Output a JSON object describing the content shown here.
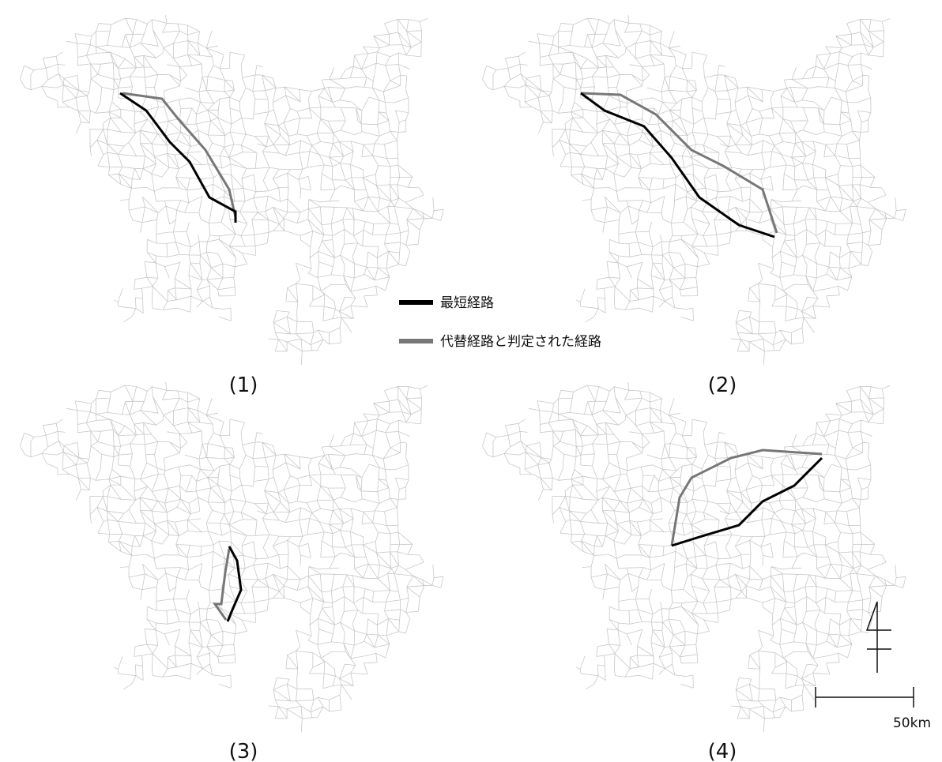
{
  "legend": [
    {
      "label": "最短経路"
    },
    {
      "label": "代替経路と判定された経路"
    }
  ],
  "panels": [
    {
      "label": "(1)"
    },
    {
      "label": "(2)"
    },
    {
      "label": "(3)"
    },
    {
      "label": "(4)"
    }
  ],
  "scale_bar": {
    "label": "50km"
  }
}
